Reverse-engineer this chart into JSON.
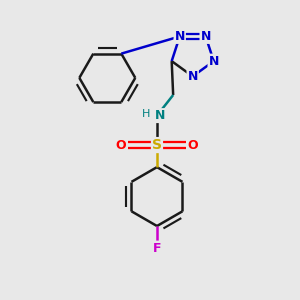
{
  "background_color": "#e8e8e8",
  "bond_color": "#1a1a1a",
  "N_color": "#0000cc",
  "S_color": "#ccaa00",
  "O_color": "#ff0000",
  "F_color": "#cc00cc",
  "NH_color": "#008080",
  "figsize": [
    3.0,
    3.0
  ],
  "dpi": 100,
  "xlim": [
    0.0,
    1.0
  ],
  "ylim": [
    0.0,
    1.0
  ]
}
